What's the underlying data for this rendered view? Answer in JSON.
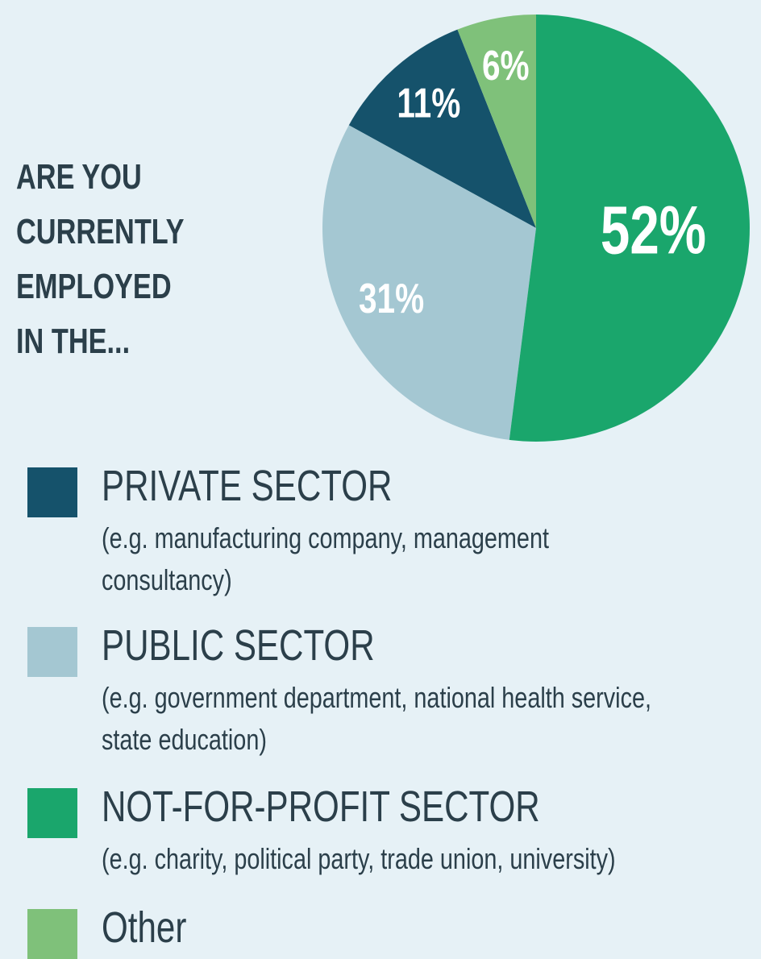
{
  "chart_data": {
    "type": "pie",
    "title": "ARE YOU\nCURRENTLY\nEMPLOYED\nIN THE...",
    "categories": [
      "PRIVATE SECTOR",
      "PUBLIC SECTOR",
      "NOT-FOR-PROFIT SECTOR",
      "Other"
    ],
    "descriptions": [
      "(e.g. manufacturing company, management consultancy)",
      "(e.g. government department, national health service, state education)",
      "(e.g. charity, political party, trade union, university)",
      null
    ],
    "values": [
      11,
      31,
      52,
      6
    ],
    "value_labels": [
      "11%",
      "31%",
      "52%",
      "6%"
    ],
    "colors": [
      "#15526b",
      "#a4c7d2",
      "#1aa66c",
      "#7fc17a"
    ],
    "startangle": 21.6,
    "direction": "counterclockwise"
  }
}
